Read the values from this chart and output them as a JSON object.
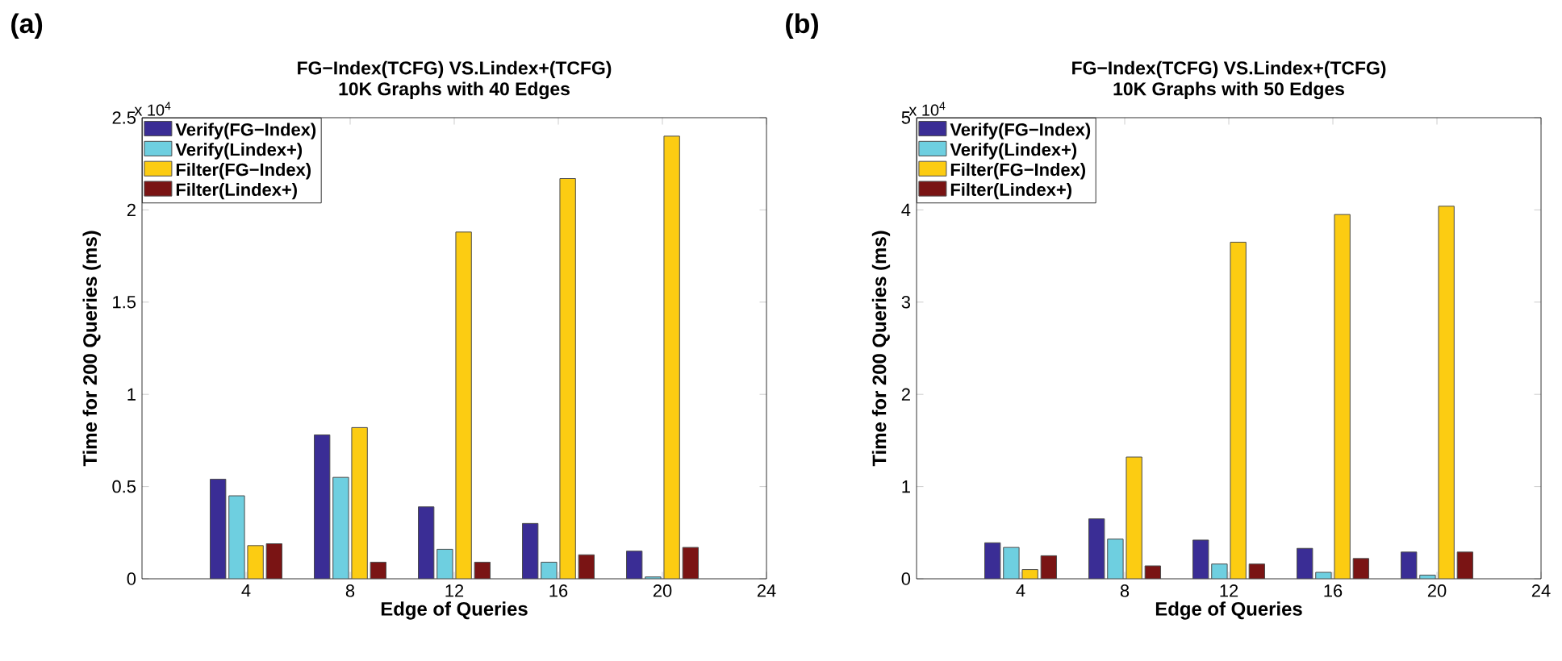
{
  "chart_data": [
    {
      "type": "bar",
      "title": "FG−Index(TCFG) VS.Lindex+(TCFG)",
      "subtitle": "10K Graphs with 40 Edges",
      "xlabel": "Edge of Queries",
      "ylabel": "Time for 200 Queries (ms)",
      "annotations": [
        "(a)",
        "x 10$^{4}$"
      ],
      "x": [
        4,
        8,
        12,
        16,
        20
      ],
      "xlim": [
        0,
        24
      ],
      "xticks": [
        4,
        8,
        12,
        16,
        20,
        24
      ],
      "ylim": [
        0,
        2.5
      ],
      "yticks": [
        0,
        0.5,
        1,
        1.5,
        2,
        2.5
      ],
      "legend": "top left",
      "grid": false,
      "series": [
        {
          "name": "Verify(FG−Index)",
          "color": "#3a2d95",
          "values": [
            0.54,
            0.78,
            0.39,
            0.3,
            0.15
          ]
        },
        {
          "name": "Verify(Lindex+)",
          "color": "#6ecfe0",
          "values": [
            0.45,
            0.55,
            0.16,
            0.09,
            0.01
          ]
        },
        {
          "name": "Filter(FG−Index)",
          "color": "#fccc12",
          "values": [
            0.18,
            0.82,
            1.88,
            2.17,
            2.4
          ]
        },
        {
          "name": "Filter(Lindex+)",
          "color": "#7a1414",
          "values": [
            0.19,
            0.09,
            0.09,
            0.13,
            0.17
          ]
        }
      ]
    },
    {
      "type": "bar",
      "title": "FG−Index(TCFG) VS.Lindex+(TCFG)",
      "subtitle": "10K Graphs with 50 Edges",
      "xlabel": "Edge of Queries",
      "ylabel": "Time for 200 Queries (ms)",
      "annotations": [
        "(b)",
        "x 10$^{4}$"
      ],
      "x": [
        4,
        8,
        12,
        16,
        20
      ],
      "xlim": [
        0,
        24
      ],
      "xticks": [
        4,
        8,
        12,
        16,
        20,
        24
      ],
      "ylim": [
        0,
        5
      ],
      "yticks": [
        0,
        1,
        2,
        3,
        4,
        5
      ],
      "legend": "top left",
      "grid": false,
      "series": [
        {
          "name": "Verify(FG−Index)",
          "color": "#3a2d95",
          "values": [
            0.39,
            0.65,
            0.42,
            0.33,
            0.29
          ]
        },
        {
          "name": "Verify(Lindex+)",
          "color": "#6ecfe0",
          "values": [
            0.34,
            0.43,
            0.16,
            0.07,
            0.04
          ]
        },
        {
          "name": "Filter(FG−Index)",
          "color": "#fccc12",
          "values": [
            0.1,
            1.32,
            3.65,
            3.95,
            4.04
          ]
        },
        {
          "name": "Filter(Lindex+)",
          "color": "#7a1414",
          "values": [
            0.25,
            0.14,
            0.16,
            0.22,
            0.29
          ]
        }
      ]
    }
  ]
}
